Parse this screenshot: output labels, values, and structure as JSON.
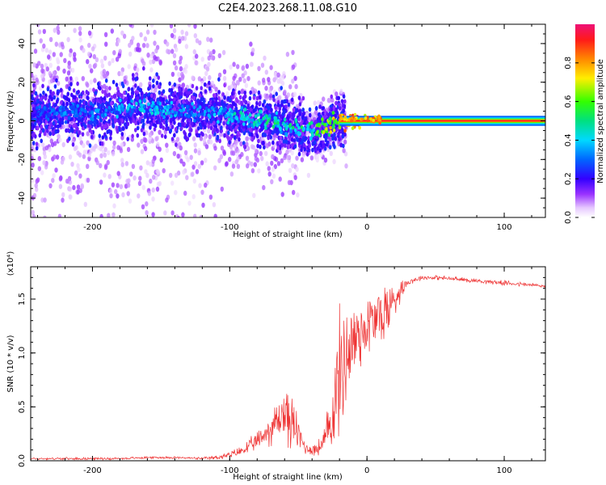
{
  "figure_title": "C2E4.2023.268.11.08.G10",
  "chart_data": [
    {
      "type": "heatmap",
      "name": "spectrogram",
      "xlabel": "Height of straight line (km)",
      "ylabel": "Frequency (Hz)",
      "xlim": [
        -245,
        130
      ],
      "ylim": [
        -50,
        50
      ],
      "x_ticks": [
        -200,
        -100,
        0,
        100
      ],
      "x_tick_labels": [
        "-200",
        "-100",
        "0",
        "100"
      ],
      "y_ticks": [
        -40,
        -20,
        0,
        20,
        40
      ],
      "y_tick_labels": [
        "-40",
        "-20",
        "0",
        "20",
        "40"
      ],
      "colorbar": {
        "label": "Normalized spectral amplitude",
        "range": [
          0,
          1
        ],
        "ticks": [
          0.0,
          0.2,
          0.4,
          0.6,
          0.8
        ],
        "tick_labels": [
          "0.0",
          "0.2",
          "0.4",
          "0.6",
          "0.8"
        ],
        "colormap": "rainbow (white-violet-blue-cyan-green-yellow-orange-red-magenta)"
      },
      "ridge": {
        "x": [
          -245,
          -220,
          -200,
          -180,
          -160,
          -140,
          -120,
          -100,
          -80,
          -60,
          -40,
          -30,
          -20,
          -10,
          0,
          20,
          60,
          100,
          130
        ],
        "f_hz": [
          3,
          5,
          4,
          6,
          8,
          5,
          5,
          3,
          1,
          -2,
          -6,
          -3,
          0,
          0,
          0,
          0,
          0,
          0,
          0
        ],
        "amplitude": [
          0.25,
          0.3,
          0.3,
          0.35,
          0.4,
          0.35,
          0.3,
          0.4,
          0.45,
          0.45,
          0.5,
          0.6,
          0.8,
          0.85,
          0.9,
          0.95,
          0.95,
          0.95,
          0.95
        ]
      },
      "notes": "Broad scattered low-amplitude energy for heights below about -20 km; narrow strong line at 0 Hz above -20 km."
    },
    {
      "type": "line",
      "name": "snr",
      "xlabel": "Height of straight line (km)",
      "ylabel": "SNR (10 * v/v)",
      "y_multiplier": "(x10⁴)",
      "xlim": [
        -245,
        130
      ],
      "ylim": [
        0,
        1.8
      ],
      "x_ticks": [
        -200,
        -100,
        0,
        100
      ],
      "x_tick_labels": [
        "-200",
        "-100",
        "0",
        "100"
      ],
      "y_ticks": [
        0.0,
        0.5,
        1.0,
        1.5
      ],
      "y_tick_labels": [
        "0.0",
        "0.5",
        "1.0",
        "1.5"
      ],
      "color": "#ee3333",
      "series": [
        {
          "name": "SNR",
          "x": [
            -245,
            -220,
            -200,
            -180,
            -160,
            -140,
            -120,
            -110,
            -100,
            -90,
            -80,
            -70,
            -60,
            -55,
            -50,
            -45,
            -40,
            -35,
            -30,
            -25,
            -20,
            -15,
            -10,
            -5,
            0,
            5,
            10,
            15,
            20,
            25,
            30,
            40,
            50,
            60,
            70,
            80,
            90,
            100,
            110,
            120,
            130
          ],
          "y": [
            0.02,
            0.02,
            0.02,
            0.02,
            0.03,
            0.03,
            0.02,
            0.03,
            0.05,
            0.1,
            0.18,
            0.3,
            0.45,
            0.35,
            0.25,
            0.12,
            0.1,
            0.12,
            0.2,
            0.45,
            0.8,
            1.0,
            1.1,
            1.2,
            1.25,
            1.3,
            1.35,
            1.4,
            1.5,
            1.6,
            1.66,
            1.7,
            1.7,
            1.69,
            1.68,
            1.67,
            1.66,
            1.65,
            1.64,
            1.63,
            1.62
          ],
          "noise_amplitude": [
            0.01,
            0.01,
            0.01,
            0.01,
            0.01,
            0.01,
            0.01,
            0.02,
            0.03,
            0.05,
            0.08,
            0.15,
            0.25,
            0.25,
            0.15,
            0.06,
            0.05,
            0.08,
            0.15,
            0.4,
            0.55,
            0.5,
            0.45,
            0.35,
            0.3,
            0.3,
            0.3,
            0.25,
            0.2,
            0.08,
            0.03,
            0.02,
            0.02,
            0.02,
            0.02,
            0.02,
            0.02,
            0.02,
            0.02,
            0.02,
            0.02
          ]
        }
      ]
    }
  ]
}
